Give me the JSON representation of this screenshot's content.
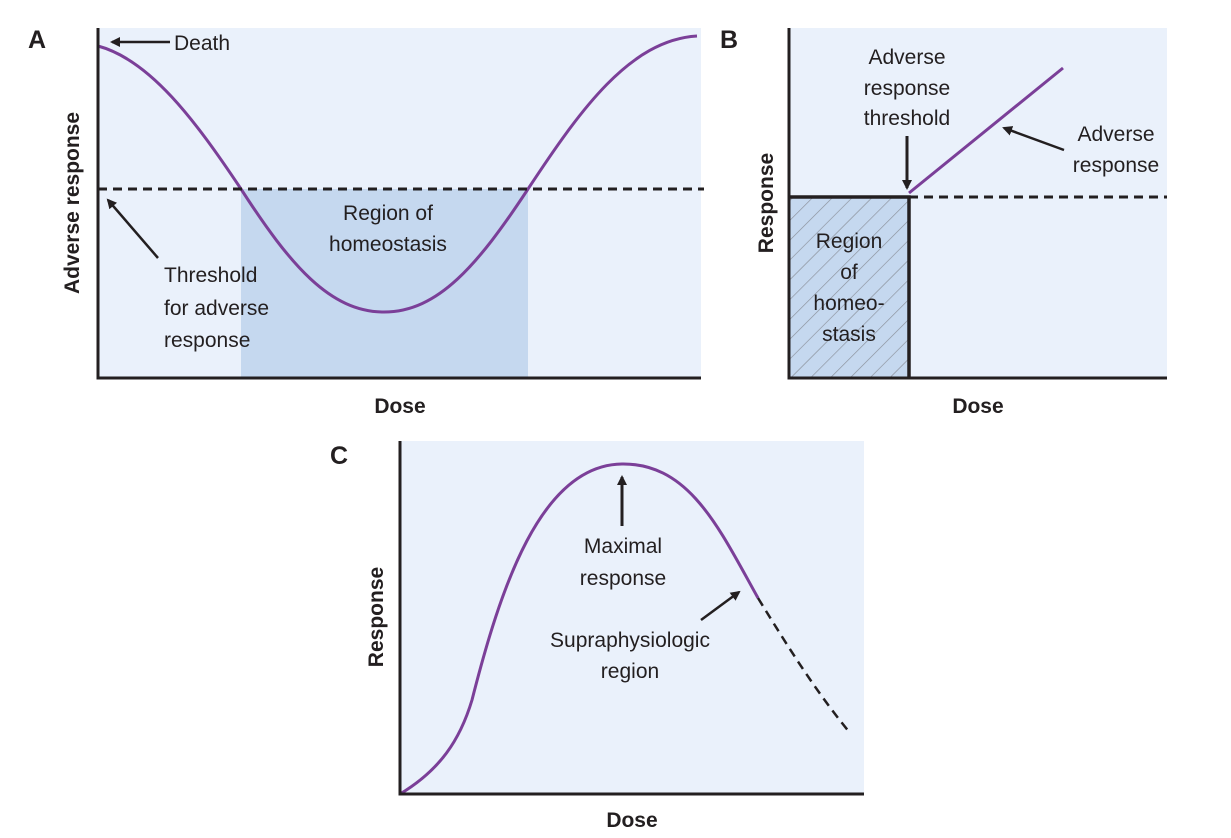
{
  "colors": {
    "plot_bg": "#eaf1fb",
    "shade": "#c5d8ef",
    "curve": "#7b3f98",
    "ink": "#231f20",
    "hatch": "#8a8f99"
  },
  "panel_a": {
    "letter": "A",
    "ylabel": "Adverse response",
    "xlabel": "Dose",
    "death_label": "Death",
    "threshold_label": [
      "Threshold",
      "for adverse",
      "response"
    ],
    "region_label": [
      "Region of",
      "homeostasis"
    ]
  },
  "panel_b": {
    "letter": "B",
    "ylabel": "Response",
    "xlabel": "Dose",
    "threshold_label": [
      "Adverse",
      "response",
      "threshold"
    ],
    "adverse_label": [
      "Adverse",
      "response"
    ],
    "region_label": [
      "Region",
      "of",
      "homeo-",
      "stasis"
    ]
  },
  "panel_c": {
    "letter": "C",
    "ylabel": "Response",
    "xlabel": "Dose",
    "maximal_label": [
      "Maximal",
      "response"
    ],
    "supra_label": [
      "Supraphysiologic",
      "region"
    ]
  }
}
